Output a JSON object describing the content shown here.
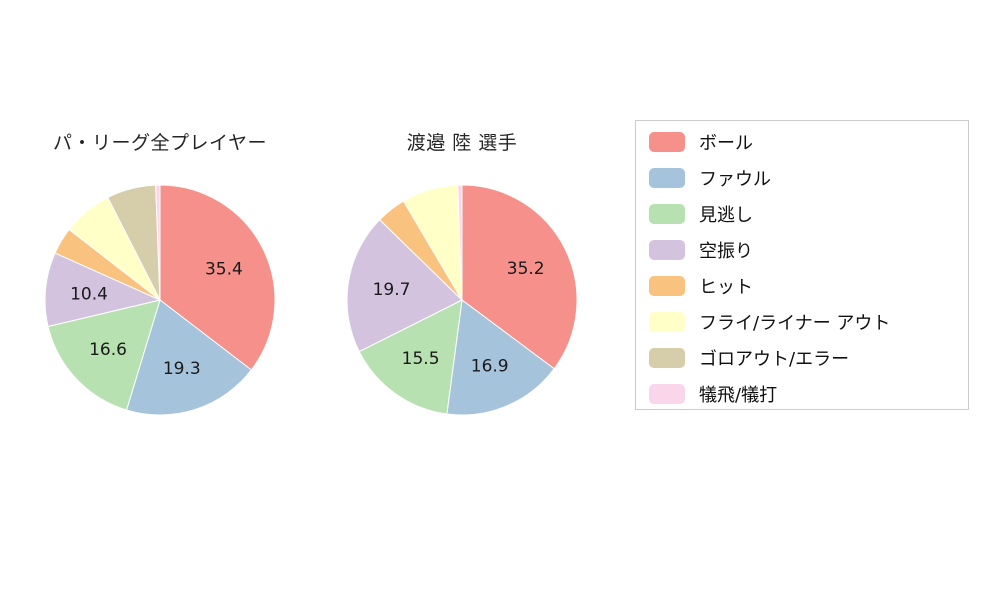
{
  "chart_data": [
    {
      "type": "pie",
      "title": "パ・リーグ全プレイヤー",
      "start_angle": "top",
      "direction": "clockwise",
      "categories": [
        "ボール",
        "ファウル",
        "見逃し",
        "空振り",
        "ヒット",
        "フライ/ライナー アウト",
        "ゴロアウト/エラー",
        "犠飛/犠打"
      ],
      "values": [
        35.4,
        19.3,
        16.6,
        10.4,
        3.8,
        7.0,
        6.9,
        0.6
      ],
      "labeled_values": [
        "35.4",
        "19.3",
        "16.6",
        "10.4"
      ],
      "label_threshold": 10
    },
    {
      "type": "pie",
      "title": "渡邉 陸  選手",
      "start_angle": "top",
      "direction": "clockwise",
      "categories": [
        "ボール",
        "ファウル",
        "見逃し",
        "空振り",
        "ヒット",
        "フライ/ライナー アウト",
        "ゴロアウト/エラー",
        "犠飛/犠打"
      ],
      "values": [
        35.2,
        16.9,
        15.5,
        19.7,
        4.2,
        7.9,
        0,
        0.6
      ],
      "labeled_values": [
        "35.2",
        "16.9",
        "15.5",
        "19.7"
      ],
      "label_threshold": 10
    }
  ],
  "legend": {
    "position": "right",
    "items": [
      {
        "label": "ボール",
        "color": "#f5918a"
      },
      {
        "label": "ファウル",
        "color": "#a6c3dc"
      },
      {
        "label": "見逃し",
        "color": "#b7e1b0"
      },
      {
        "label": "空振り",
        "color": "#d3c3de"
      },
      {
        "label": "ヒット",
        "color": "#f9c27f"
      },
      {
        "label": "フライ/ライナー アウト",
        "color": "#ffffc7"
      },
      {
        "label": "ゴロアウト/エラー",
        "color": "#d6cdaa"
      },
      {
        "label": "犠飛/犠打",
        "color": "#fad6eb"
      }
    ]
  },
  "style": {
    "slice_stroke": "#ffffff",
    "value_label_color": "#1a1a1a",
    "title_color": "#262626"
  }
}
